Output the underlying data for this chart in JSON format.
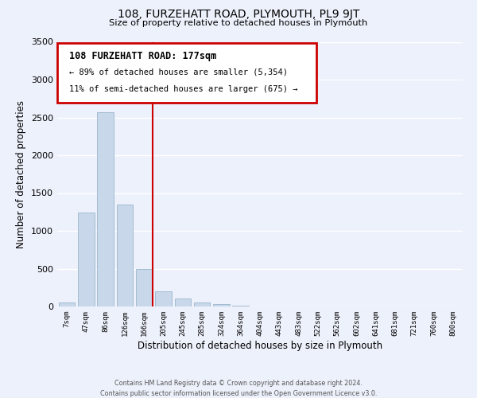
{
  "title": "108, FURZEHATT ROAD, PLYMOUTH, PL9 9JT",
  "subtitle": "Size of property relative to detached houses in Plymouth",
  "xlabel": "Distribution of detached houses by size in Plymouth",
  "ylabel": "Number of detached properties",
  "bar_labels": [
    "7sqm",
    "47sqm",
    "86sqm",
    "126sqm",
    "166sqm",
    "205sqm",
    "245sqm",
    "285sqm",
    "324sqm",
    "364sqm",
    "404sqm",
    "443sqm",
    "483sqm",
    "522sqm",
    "562sqm",
    "602sqm",
    "641sqm",
    "681sqm",
    "721sqm",
    "760sqm",
    "800sqm"
  ],
  "bar_values": [
    50,
    1240,
    2570,
    1350,
    500,
    200,
    110,
    50,
    30,
    12,
    5,
    2,
    1,
    0,
    0,
    0,
    0,
    0,
    0,
    0,
    0
  ],
  "bar_color": "#c8d8ea",
  "bar_edgecolor": "#9ab5cc",
  "background_color": "#edf1fb",
  "grid_color": "#ffffff",
  "ylim_max": 3500,
  "yticks": [
    0,
    500,
    1000,
    1500,
    2000,
    2500,
    3000,
    3500
  ],
  "vline_position": 4.45,
  "vline_color": "#cc0000",
  "ann_line1": "108 FURZEHATT ROAD: 177sqm",
  "ann_line2": "← 89% of detached houses are smaller (5,354)",
  "ann_line3": "11% of semi-detached houses are larger (675) →",
  "ann_box_color": "#cc0000",
  "footer1": "Contains HM Land Registry data © Crown copyright and database right 2024.",
  "footer2": "Contains public sector information licensed under the Open Government Licence v3.0."
}
